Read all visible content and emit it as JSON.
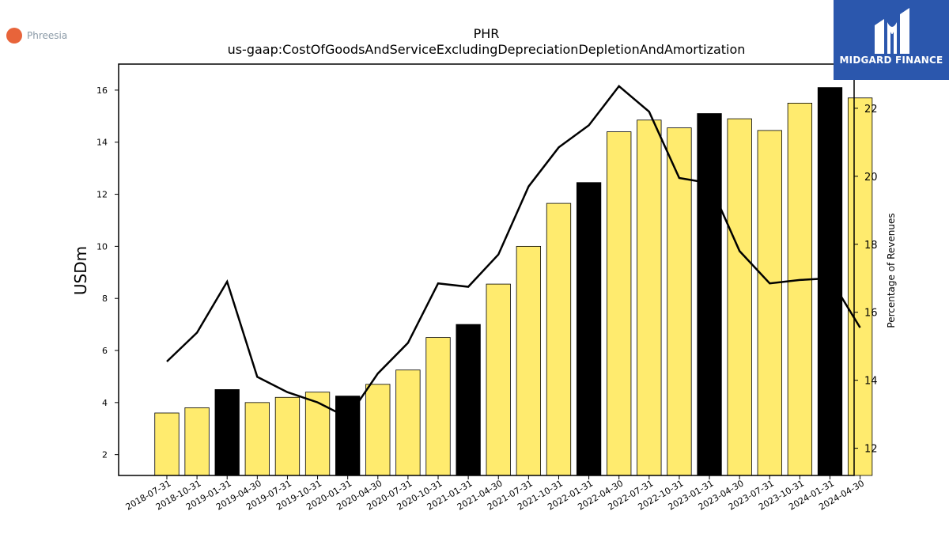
{
  "company": {
    "name": "Phreesia",
    "logo_color": "#e8643a"
  },
  "brand": {
    "name": "MIDGARD FINANCE",
    "background": "#2b57ad"
  },
  "chart_data": {
    "type": "bar",
    "title": "PHR",
    "subtitle": "us-gaap:CostOfGoodsAndServiceExcludingDepreciationDepletionAndAmortization",
    "ylabel": "USDm",
    "y2label": "Percentage of Revenues",
    "ylim": [
      1.2,
      17.0
    ],
    "y2lim": [
      11.2,
      23.3
    ],
    "yticks": [
      2,
      4,
      6,
      8,
      10,
      12,
      14,
      16
    ],
    "y2ticks": [
      12,
      14,
      16,
      18,
      20,
      22
    ],
    "categories": [
      "2018-07-31",
      "2018-10-31",
      "2019-01-31",
      "2019-04-30",
      "2019-07-31",
      "2019-10-31",
      "2020-01-31",
      "2020-04-30",
      "2020-07-31",
      "2020-10-31",
      "2021-01-31",
      "2021-04-30",
      "2021-07-31",
      "2021-10-31",
      "2022-01-31",
      "2022-04-30",
      "2022-07-31",
      "2022-10-31",
      "2023-01-31",
      "2023-04-30",
      "2023-07-31",
      "2023-10-31",
      "2024-01-31",
      "2024-04-30"
    ],
    "series": [
      {
        "type": "bar",
        "axis": "left",
        "values": [
          3.6,
          3.8,
          4.5,
          4.0,
          4.2,
          4.4,
          4.25,
          4.7,
          5.25,
          6.5,
          7.0,
          8.55,
          10.0,
          11.65,
          12.45,
          14.4,
          14.85,
          14.55,
          15.1,
          14.9,
          14.45,
          15.5,
          16.1,
          15.7
        ],
        "colors": [
          "#ffeb6e",
          "#ffeb6e",
          "#000000",
          "#ffeb6e",
          "#ffeb6e",
          "#ffeb6e",
          "#000000",
          "#ffeb6e",
          "#ffeb6e",
          "#ffeb6e",
          "#000000",
          "#ffeb6e",
          "#ffeb6e",
          "#ffeb6e",
          "#000000",
          "#ffeb6e",
          "#ffeb6e",
          "#ffeb6e",
          "#000000",
          "#ffeb6e",
          "#ffeb6e",
          "#ffeb6e",
          "#000000",
          "#ffeb6e"
        ]
      },
      {
        "type": "line",
        "axis": "right",
        "color": "#000000",
        "values": [
          14.55,
          15.4,
          16.9,
          14.1,
          13.65,
          13.35,
          12.9,
          14.2,
          15.1,
          16.85,
          16.75,
          17.7,
          19.7,
          20.85,
          21.5,
          22.65,
          21.9,
          19.95,
          19.8,
          17.8,
          16.85,
          16.95,
          17.0,
          15.55
        ]
      }
    ],
    "grid": false,
    "legend": "none"
  }
}
